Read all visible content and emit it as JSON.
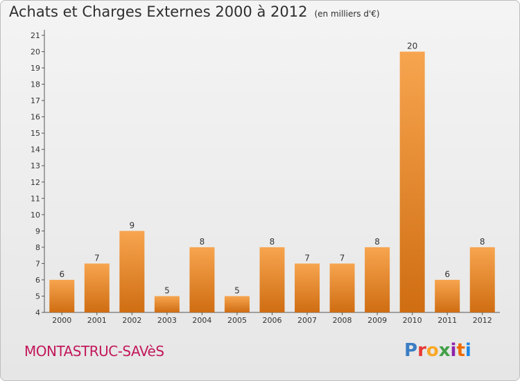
{
  "header": {
    "title": "Achats et Charges Externes 2000 à 2012",
    "subtitle": "(en milliers d'€)"
  },
  "footer": {
    "place": "MONTASTRUC-SAVèS",
    "logo": "Proxiti",
    "logo_colors": [
      "#3a7dc4",
      "#e53935",
      "#f9a825",
      "#43a047",
      "#8e24aa",
      "#ef6c00",
      "#1e88e5"
    ]
  },
  "chart_data": {
    "type": "bar",
    "title": "Achats et Charges Externes 2000 à 2012",
    "subtitle": "(en milliers d'€)",
    "categories": [
      "2000",
      "2001",
      "2002",
      "2003",
      "2004",
      "2005",
      "2006",
      "2007",
      "2008",
      "2009",
      "2010",
      "2011",
      "2012"
    ],
    "values": [
      6,
      7,
      9,
      5,
      8,
      5,
      8,
      7,
      7,
      8,
      20,
      6,
      8
    ],
    "ylim": [
      4,
      21
    ],
    "yticks": [
      4,
      5,
      6,
      7,
      8,
      9,
      10,
      11,
      12,
      13,
      14,
      15,
      16,
      17,
      18,
      19,
      20,
      21
    ],
    "bar_color_top": "#f7a54f",
    "bar_color_bottom": "#cf6d12"
  }
}
